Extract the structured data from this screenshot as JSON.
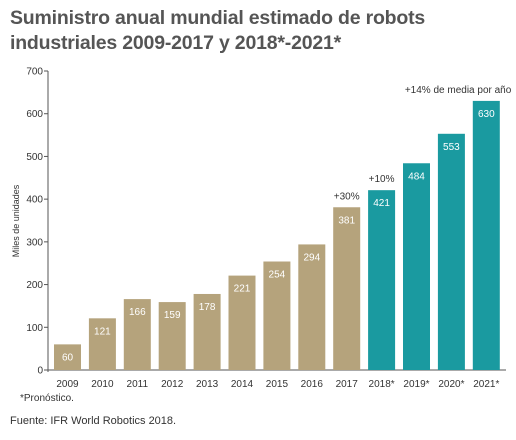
{
  "title_line1": "Suministro anual mundial estimado de robots",
  "title_line2": "industriales 2009-2017 y 2018*-2021*",
  "footnote": "*Pronóstico.",
  "source": "Fuente: IFR World Robotics 2018.",
  "chart_data": {
    "type": "bar",
    "categories": [
      "2009",
      "2010",
      "2011",
      "2012",
      "2013",
      "2014",
      "2015",
      "2016",
      "2017",
      "2018*",
      "2019*",
      "2020*",
      "2021*"
    ],
    "values": [
      60,
      121,
      166,
      159,
      178,
      221,
      254,
      294,
      381,
      421,
      484,
      553,
      630
    ],
    "forecast_from_index": 9,
    "ylabel": "Miles de unidades",
    "ylim": [
      0,
      700
    ],
    "yticks": [
      0,
      100,
      200,
      300,
      400,
      500,
      600,
      700
    ],
    "grid": false,
    "colors": {
      "actual": "#b5a37c",
      "forecast": "#1a9aa0",
      "actual_label": "#ffffff",
      "forecast_label": "#ffffff"
    },
    "annotations": [
      {
        "category": "2017",
        "text": "+30%"
      },
      {
        "category": "2018*",
        "text": "+10%"
      },
      {
        "category": "2021*",
        "text": "+14% de media por año"
      }
    ]
  }
}
